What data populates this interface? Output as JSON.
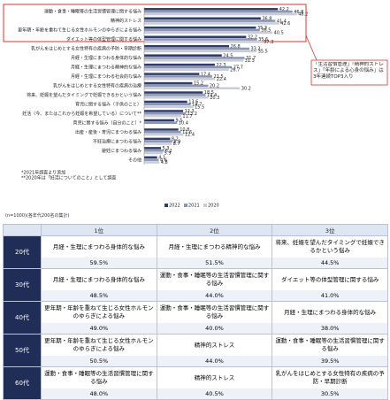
{
  "chart_data": {
    "type": "bar",
    "orientation": "horizontal",
    "categories": [
      "運動・食事・睡眠等の生活習慣管理に関する悩み",
      "精神的ストレス",
      "更年期・年齢を重ねて生じる女性ホルモンのゆらぎによる悩み",
      "ダイエット等の体型管理に関する悩み",
      "乳がんをはじめとする女性特有の疾病の予防・早期診断",
      "月経・生理にまつわる身体的な悩み",
      "月経・生理にまつわる精神的な悩み",
      "月経・生理にまつわる社会的な悩み",
      "乳がんをはじめとする女性特有の疾病の治療",
      "将来、妊娠を望んだタイミングで妊娠できるかという悩み",
      "育児に関する悩み（子供のこと）",
      "妊活（今、またはこれから妊娠を希望している）について**",
      "育児に関する悩み（自分のこと）*",
      "出産・産後・育児にまつわる悩み",
      "不妊治療にまつわる悩み",
      "避妊にまつわる悩み",
      "その他"
    ],
    "series": [
      {
        "name": "2022",
        "color": "#2f3d6b",
        "values": [
          42.2,
          36.8,
          35.3,
          32.2,
          26.8,
          24.5,
          22.3,
          17.4,
          15.2,
          18.5,
          13.6,
          12.3,
          9.5,
          10.8,
          8.2,
          5.3,
          4.1
        ]
      },
      {
        "name": "2021",
        "color": "#8d97b5",
        "values": [
          46.8,
          41.4,
          36.5,
          35.6,
          33.2,
          31.7,
          27.7,
          21.5,
          20.2,
          19.4,
          14.7,
          13.2,
          10.4,
          11.6,
          8.9,
          6.2,
          4.6
        ]
      },
      {
        "name": "2020",
        "color": "#c9cdd8",
        "values": [
          48.2,
          42.6,
          40.5,
          37.3,
          35.5,
          31.3,
          26.7,
          22.4,
          30.2,
          20.3,
          15.5,
          11.7,
          null,
          12.4,
          8.7,
          5.9,
          4.8
        ]
      }
    ],
    "xlim": [
      0,
      60
    ],
    "footnotes": [
      "*2021年調査より追加",
      "**2020年は「妊活についてのこと」として調査"
    ],
    "callout": "「生活習慣管理」「精神的ストレス」「年齢による心身の悩み」は3年連続TOP3入り",
    "legend_position": "bottom"
  },
  "table": {
    "note": "(n=1000)(各年代200名の集計)",
    "columns": [
      "1位",
      "2位",
      "3位"
    ],
    "rows": [
      {
        "age": "20代",
        "cells": [
          [
            "月経・生理にまつわる身体的な悩み",
            "59.5%"
          ],
          [
            "月経・生理にまつわる精神的な悩み",
            "51.5%"
          ],
          [
            "将来、妊娠を望んだタイミングで妊娠できるかという悩み",
            "44.5%"
          ]
        ]
      },
      {
        "age": "30代",
        "cells": [
          [
            "月経・生理にまつわる身体的な悩み",
            "48.5%"
          ],
          [
            "運動・食事・睡眠等の生活習慣管理に関する悩み",
            "44.0%"
          ],
          [
            "ダイエット等の体型管理に関する悩み",
            "41.0%"
          ]
        ]
      },
      {
        "age": "40代",
        "cells": [
          [
            "更年期・年齢を重ねて生じる女性ホルモンのゆらぎによる悩み",
            "49.0%"
          ],
          [
            "運動・食事・睡眠等の生活習慣管理に関する悩み",
            "40.0%"
          ],
          [
            "月経・生理にまつわる身体的な悩み",
            "38.0%"
          ]
        ]
      },
      {
        "age": "50代",
        "cells": [
          [
            "更年期・年齢を重ねて生じる女性ホルモンのゆらぎによる悩み",
            "50.5%"
          ],
          [
            "精神的ストレス",
            "44.0%"
          ],
          [
            "運動・食事・睡眠等の生活習慣管理に関する悩み",
            "39.5%"
          ]
        ]
      },
      {
        "age": "60代",
        "cells": [
          [
            "運動・食事・睡眠等の生活習慣管理に関する悩み",
            "48.0%"
          ],
          [
            "精神的ストレス",
            "40.5%"
          ],
          [
            "乳がんをはじめとする女性特有の疾病の予防・早期診断",
            "30.5%"
          ]
        ]
      }
    ]
  }
}
